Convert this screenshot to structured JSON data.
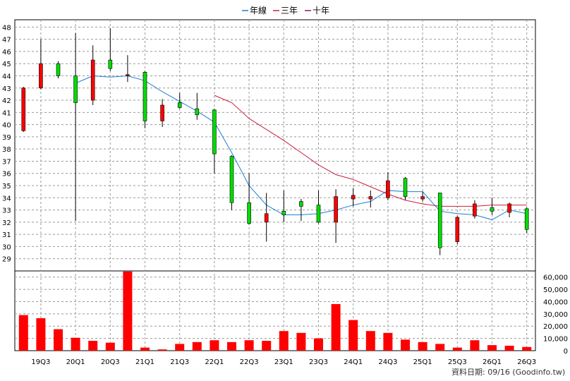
{
  "footer": "資料日期: 09/16 (Goodinfo.tw)",
  "chart_data": {
    "type": "candlestick",
    "legend": [
      {
        "name": "年線",
        "color": "#1e7ed6"
      },
      {
        "name": "三年",
        "color": "#c8203c"
      },
      {
        "name": "十年",
        "color": "#8b1a6b"
      }
    ],
    "price_axis": {
      "ylim": [
        28,
        48.6
      ],
      "ticks": [
        29,
        30,
        31,
        32,
        33,
        34,
        35,
        36,
        37,
        38,
        39,
        40,
        41,
        42,
        43,
        44,
        45,
        46,
        47,
        48
      ]
    },
    "volume_axis": {
      "ylim": [
        0,
        65000
      ],
      "ticks": [
        0,
        10000,
        20000,
        30000,
        40000,
        50000,
        60000
      ],
      "tick_labels": [
        "0",
        "10,000",
        "20,000",
        "30,000",
        "40,000",
        "50,000",
        "60,000"
      ]
    },
    "x_tick_labels": [
      {
        "index": 1,
        "label": "19Q3"
      },
      {
        "index": 3,
        "label": "20Q1"
      },
      {
        "index": 5,
        "label": "20Q3"
      },
      {
        "index": 7,
        "label": "21Q1"
      },
      {
        "index": 9,
        "label": "21Q3"
      },
      {
        "index": 11,
        "label": "22Q1"
      },
      {
        "index": 13,
        "label": "22Q3"
      },
      {
        "index": 15,
        "label": "23Q1"
      },
      {
        "index": 17,
        "label": "23Q3"
      },
      {
        "index": 19,
        "label": "24Q1"
      },
      {
        "index": 21,
        "label": "24Q3"
      },
      {
        "index": 23,
        "label": "25Q1"
      },
      {
        "index": 25,
        "label": "25Q3"
      },
      {
        "index": 27,
        "label": "26Q1"
      },
      {
        "index": 29,
        "label": "26Q3"
      }
    ],
    "candles": [
      {
        "o": 39.5,
        "c": 43.0,
        "h": 43.1,
        "l": 39.4,
        "color": "red"
      },
      {
        "o": 43.0,
        "c": 45.0,
        "h": 47.0,
        "l": 42.9,
        "color": "red"
      },
      {
        "o": 45.0,
        "c": 44.0,
        "h": 45.2,
        "l": 43.8,
        "color": "green"
      },
      {
        "o": 44.0,
        "c": 41.8,
        "h": 47.5,
        "l": 32.1,
        "color": "green"
      },
      {
        "o": 42.0,
        "c": 45.3,
        "h": 46.5,
        "l": 41.6,
        "color": "red"
      },
      {
        "o": 45.3,
        "c": 44.6,
        "h": 47.9,
        "l": 44.4,
        "color": "green"
      },
      {
        "o": 44.1,
        "c": 44.1,
        "h": 45.7,
        "l": 43.5,
        "color": "red"
      },
      {
        "o": 44.3,
        "c": 40.3,
        "h": 44.4,
        "l": 39.7,
        "color": "green"
      },
      {
        "o": 40.3,
        "c": 41.6,
        "h": 42.1,
        "l": 39.8,
        "color": "red"
      },
      {
        "o": 41.8,
        "c": 41.4,
        "h": 42.6,
        "l": 41.3,
        "color": "green"
      },
      {
        "o": 41.3,
        "c": 40.8,
        "h": 42.6,
        "l": 40.4,
        "color": "green"
      },
      {
        "o": 41.2,
        "c": 37.6,
        "h": 41.3,
        "l": 36.0,
        "color": "green"
      },
      {
        "o": 37.4,
        "c": 33.6,
        "h": 37.5,
        "l": 33.0,
        "color": "green"
      },
      {
        "o": 33.6,
        "c": 31.9,
        "h": 36.0,
        "l": 31.8,
        "color": "green"
      },
      {
        "o": 32.0,
        "c": 32.7,
        "h": 34.4,
        "l": 30.4,
        "color": "red"
      },
      {
        "o": 32.9,
        "c": 32.6,
        "h": 34.6,
        "l": 32.0,
        "color": "green"
      },
      {
        "o": 33.7,
        "c": 33.3,
        "h": 33.9,
        "l": 32.1,
        "color": "green"
      },
      {
        "o": 32.0,
        "c": 33.4,
        "h": 34.6,
        "l": 31.9,
        "color": "green"
      },
      {
        "o": 32.0,
        "c": 34.1,
        "h": 34.7,
        "l": 30.3,
        "color": "red"
      },
      {
        "o": 34.2,
        "c": 33.9,
        "h": 34.8,
        "l": 33.3,
        "color": "red"
      },
      {
        "o": 34.1,
        "c": 33.9,
        "h": 34.6,
        "l": 33.2,
        "color": "red"
      },
      {
        "o": 34.0,
        "c": 35.4,
        "h": 36.1,
        "l": 33.8,
        "color": "red"
      },
      {
        "o": 35.6,
        "c": 34.1,
        "h": 35.7,
        "l": 33.8,
        "color": "green"
      },
      {
        "o": 34.1,
        "c": 33.9,
        "h": 34.5,
        "l": 33.7,
        "color": "red"
      },
      {
        "o": 34.4,
        "c": 29.9,
        "h": 34.4,
        "l": 29.3,
        "color": "green"
      },
      {
        "o": 30.4,
        "c": 32.4,
        "h": 32.5,
        "l": 30.2,
        "color": "red"
      },
      {
        "o": 32.5,
        "c": 33.5,
        "h": 33.8,
        "l": 32.3,
        "color": "red"
      },
      {
        "o": 33.2,
        "c": 32.9,
        "h": 34.0,
        "l": 32.6,
        "color": "green"
      },
      {
        "o": 32.8,
        "c": 33.5,
        "h": 33.6,
        "l": 32.4,
        "color": "red"
      },
      {
        "o": 33.1,
        "c": 31.4,
        "h": 33.2,
        "l": 31.1,
        "color": "green"
      }
    ],
    "volumes": [
      29000,
      26500,
      17500,
      10500,
      8000,
      6500,
      64500,
      2500,
      1000,
      5500,
      7000,
      8500,
      7000,
      8500,
      8000,
      16000,
      14500,
      10000,
      38000,
      25000,
      16000,
      14500,
      9000,
      7000,
      5500,
      2500,
      8500,
      4500,
      4000,
      3000
    ],
    "lines": [
      {
        "name": "年線",
        "color": "#1e7ed6",
        "points": [
          [
            3,
            43.4
          ],
          [
            4,
            44.0
          ],
          [
            5,
            43.9
          ],
          [
            6,
            44.0
          ],
          [
            7,
            43.6
          ],
          [
            8,
            42.7
          ],
          [
            9,
            41.9
          ],
          [
            10,
            41.1
          ],
          [
            11,
            40.2
          ],
          [
            12,
            37.7
          ],
          [
            13,
            35.0
          ],
          [
            14,
            33.4
          ],
          [
            15,
            32.6
          ],
          [
            16,
            32.6
          ],
          [
            17,
            32.7
          ],
          [
            18,
            33.0
          ],
          [
            19,
            33.4
          ],
          [
            20,
            33.7
          ],
          [
            21,
            34.6
          ],
          [
            22,
            34.5
          ],
          [
            23,
            34.5
          ],
          [
            24,
            32.9
          ],
          [
            25,
            32.7
          ],
          [
            26,
            32.6
          ],
          [
            27,
            32.2
          ],
          [
            28,
            33.0
          ],
          [
            29,
            32.7
          ]
        ]
      },
      {
        "name": "三年",
        "color": "#c8203c",
        "points": [
          [
            11,
            42.4
          ],
          [
            12,
            41.8
          ],
          [
            13,
            40.5
          ],
          [
            14,
            39.6
          ],
          [
            15,
            38.7
          ],
          [
            16,
            37.7
          ],
          [
            17,
            36.7
          ],
          [
            18,
            35.9
          ],
          [
            19,
            35.5
          ],
          [
            20,
            34.9
          ],
          [
            21,
            34.3
          ],
          [
            22,
            33.8
          ],
          [
            23,
            33.5
          ],
          [
            24,
            33.3
          ],
          [
            25,
            33.3
          ],
          [
            26,
            33.3
          ],
          [
            27,
            33.4
          ],
          [
            28,
            33.4
          ],
          [
            29,
            33.4
          ]
        ]
      }
    ]
  }
}
